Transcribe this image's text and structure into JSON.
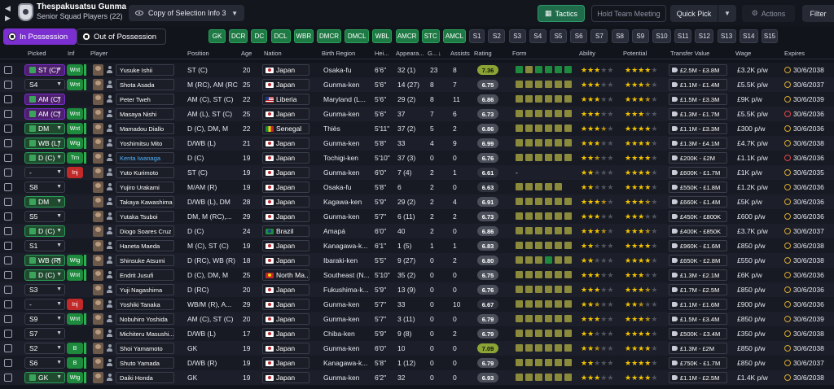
{
  "header": {
    "club_name": "Thespakusatsu Gunma",
    "squad_label": "Senior Squad Players (22)",
    "view_label": "Copy of Selection Info 3",
    "tactics_label": "Tactics",
    "hold_meeting_label": "Hold Team Meeting",
    "quick_pick_label": "Quick Pick",
    "actions_label": "Actions",
    "filter_label": "Filter"
  },
  "tabs": {
    "in_possession": "In Possession",
    "out_possession": "Out of Possession"
  },
  "position_buttons": [
    {
      "label": "GK",
      "style": "green"
    },
    {
      "label": "DCR",
      "style": "green"
    },
    {
      "label": "DC",
      "style": "green"
    },
    {
      "label": "DCL",
      "style": "green"
    },
    {
      "label": "WBR",
      "style": "green"
    },
    {
      "label": "DMCR",
      "style": "green"
    },
    {
      "label": "DMCL",
      "style": "green"
    },
    {
      "label": "WBL",
      "style": "green"
    },
    {
      "label": "AMCR",
      "style": "green"
    },
    {
      "label": "STC",
      "style": "green"
    },
    {
      "label": "AMCL",
      "style": "green"
    },
    {
      "label": "S1",
      "style": "gray"
    },
    {
      "label": "S2",
      "style": "gray"
    },
    {
      "label": "S3",
      "style": "gray"
    },
    {
      "label": "S4",
      "style": "gray"
    },
    {
      "label": "S5",
      "style": "gray"
    },
    {
      "label": "S6",
      "style": "gray"
    },
    {
      "label": "S7",
      "style": "gray"
    },
    {
      "label": "S8",
      "style": "gray"
    },
    {
      "label": "S9",
      "style": "gray"
    },
    {
      "label": "S10",
      "style": "gray"
    },
    {
      "label": "S11",
      "style": "gray"
    },
    {
      "label": "S12",
      "style": "gray"
    },
    {
      "label": "S13",
      "style": "gray"
    },
    {
      "label": "S14",
      "style": "gray"
    },
    {
      "label": "S15",
      "style": "gray"
    }
  ],
  "columns": {
    "picked": "Picked",
    "inf": "Inf",
    "player": "Player",
    "position": "Position",
    "age": "Age",
    "nation": "Nation",
    "birth_region": "Birth Region",
    "height": "Hei...",
    "appearances": "Appeara...",
    "goals": "G...",
    "assists": "Assists",
    "rating": "Rating",
    "form": "Form",
    "ability": "Ability",
    "potential": "Potential",
    "transfer_value": "Transfer Value",
    "wage": "Wage",
    "expires": "Expires"
  },
  "players": [
    {
      "picked": "ST (C)",
      "picked_style": "pk-purple",
      "inf": "Wnt",
      "inf_style": "green",
      "name": "Yusuke Ishii",
      "position": "ST (C)",
      "age": "20",
      "nation": "Japan",
      "flag": "jp",
      "birth_region": "Osaka-fu",
      "height": "6'6\"",
      "apps": "32 (1)",
      "goals": "23",
      "assists": "8",
      "rating": "7.36",
      "rating_style": "hi",
      "form": [
        "g",
        "y",
        "g",
        "g",
        "g",
        "g"
      ],
      "ability": 3,
      "potential": 4,
      "value": "£2.5M - £3.8M",
      "wage": "£3.2K p/w",
      "expires": "30/6/2038",
      "exp_alert": false
    },
    {
      "picked": "S4",
      "picked_style": "plain",
      "inf": "Wnt",
      "inf_style": "green",
      "name": "Shota Asada",
      "position": "M (RC), AM (RC)",
      "age": "25",
      "nation": "Japan",
      "flag": "jp",
      "birth_region": "Gunma-ken",
      "height": "5'6\"",
      "apps": "14 (27)",
      "goals": "8",
      "assists": "7",
      "rating": "6.75",
      "rating_style": "mid",
      "form": [
        "y",
        "y",
        "y",
        "y",
        "y",
        "y"
      ],
      "ability": 3,
      "potential": 3.5,
      "value": "£1.1M - £1.4M",
      "wage": "£5.5K p/w",
      "expires": "30/6/2037",
      "exp_alert": false
    },
    {
      "picked": "AM (C)",
      "picked_style": "pk-purple",
      "inf": "",
      "inf_style": "none",
      "name": "Peter Tweh",
      "position": "AM (C), ST (C)",
      "age": "22",
      "nation": "Liberia",
      "flag": "lr",
      "birth_region": "Maryland (L...",
      "height": "5'6\"",
      "apps": "29 (2)",
      "goals": "8",
      "assists": "11",
      "rating": "6.86",
      "rating_style": "mid",
      "form": [
        "y",
        "y",
        "y",
        "y",
        "y",
        "y"
      ],
      "ability": 3,
      "potential": 3.5,
      "value": "£1.5M - £3.3M",
      "wage": "£9K p/w",
      "expires": "30/6/2039",
      "exp_alert": false
    },
    {
      "picked": "AM (C)",
      "picked_style": "pk-purple",
      "inf": "Wnt",
      "inf_style": "green",
      "name": "Masaya Nishi",
      "position": "AM (L), ST (C)",
      "age": "25",
      "nation": "Japan",
      "flag": "jp",
      "birth_region": "Gunma-ken",
      "height": "5'6\"",
      "apps": "37",
      "goals": "7",
      "assists": "6",
      "rating": "6.73",
      "rating_style": "mid",
      "form": [
        "y",
        "y",
        "y",
        "y",
        "y",
        "y"
      ],
      "ability": 3,
      "potential": 3,
      "value": "£1.3M - £1.7M",
      "wage": "£5.5K p/w",
      "expires": "30/6/2036",
      "exp_alert": true
    },
    {
      "picked": "DM",
      "picked_style": "pk-green",
      "inf": "Wnt",
      "inf_style": "green",
      "name": "Mamadou Diallo",
      "position": "D (C), DM, M",
      "age": "22",
      "nation": "Senegal",
      "flag": "sn",
      "birth_region": "Thiès",
      "height": "5'11\"",
      "apps": "37 (2)",
      "goals": "5",
      "assists": "2",
      "rating": "6.86",
      "rating_style": "mid",
      "form": [
        "y",
        "y",
        "y",
        "y",
        "y",
        "y"
      ],
      "ability": 3.5,
      "potential": 4,
      "value": "£1.1M - £3.3M",
      "wage": "£300 p/w",
      "expires": "30/6/2036",
      "exp_alert": false
    },
    {
      "picked": "WB (L)",
      "picked_style": "pk-green",
      "inf": "Wtg",
      "inf_style": "green",
      "name": "Yoshimitsu Mito",
      "position": "D/WB (L)",
      "age": "21",
      "nation": "Japan",
      "flag": "jp",
      "birth_region": "Gunma-ken",
      "height": "5'8\"",
      "apps": "33",
      "goals": "4",
      "assists": "9",
      "rating": "6.99",
      "rating_style": "mid",
      "form": [
        "y",
        "y",
        "y",
        "y",
        "y",
        "y"
      ],
      "ability": 3,
      "potential": 4,
      "value": "£1.3M - £4.1M",
      "wage": "£4.7K p/w",
      "expires": "30/6/2038",
      "exp_alert": false
    },
    {
      "picked": "D (C)",
      "picked_style": "pk-green",
      "inf": "Trn",
      "inf_style": "green",
      "name": "Kenta Iwanaga",
      "name_link": true,
      "position": "D (C)",
      "age": "19",
      "nation": "Japan",
      "flag": "jp",
      "birth_region": "Tochigi-ken",
      "height": "5'10\"",
      "apps": "37 (3)",
      "goals": "0",
      "assists": "0",
      "rating": "6.76",
      "rating_style": "mid",
      "form": [
        "y",
        "y",
        "y",
        "y",
        "y",
        "y"
      ],
      "ability": 2.5,
      "potential": 4,
      "value": "£200K - £2M",
      "wage": "£1.1K p/w",
      "expires": "30/6/2036",
      "exp_alert": true
    },
    {
      "picked": "-",
      "picked_style": "plain",
      "inf": "Inj",
      "inf_style": "red",
      "name": "Yuto Kurimoto",
      "position": "ST (C)",
      "age": "19",
      "nation": "Japan",
      "flag": "jp",
      "birth_region": "Gunma-ken",
      "height": "6'0\"",
      "apps": "7 (4)",
      "goals": "2",
      "assists": "1",
      "rating": "6.61",
      "rating_style": "lo",
      "form": [],
      "ability": 2,
      "potential": 4,
      "value": "£600K - £1.7M",
      "wage": "£1K p/w",
      "expires": "30/6/2035",
      "exp_alert": false
    },
    {
      "picked": "S8",
      "picked_style": "plain",
      "inf": "",
      "inf_style": "none",
      "name": "Yujiro Urakami",
      "position": "M/AM (R)",
      "age": "19",
      "nation": "Japan",
      "flag": "jp",
      "birth_region": "Osaka-fu",
      "height": "5'8\"",
      "apps": "6",
      "goals": "2",
      "assists": "0",
      "rating": "6.63",
      "rating_style": "lo",
      "form": [
        "y",
        "y",
        "y",
        "y",
        "y"
      ],
      "ability": 2,
      "potential": 4,
      "value": "£550K - £1.8M",
      "wage": "£1.2K p/w",
      "expires": "30/6/2036",
      "exp_alert": false
    },
    {
      "picked": "DM",
      "picked_style": "pk-green",
      "inf": "",
      "inf_style": "none",
      "name": "Takaya Kawashima",
      "position": "D/WB (L), DM",
      "age": "28",
      "nation": "Japan",
      "flag": "jp",
      "birth_region": "Kagawa-ken",
      "height": "5'9\"",
      "apps": "29 (2)",
      "goals": "2",
      "assists": "4",
      "rating": "6.91",
      "rating_style": "mid",
      "form": [
        "y",
        "y",
        "y",
        "y",
        "y",
        "y"
      ],
      "ability": 3.5,
      "potential": 3.5,
      "value": "£660K - £1.4M",
      "wage": "£5K p/w",
      "expires": "30/6/2036",
      "exp_alert": false
    },
    {
      "picked": "S5",
      "picked_style": "plain",
      "inf": "",
      "inf_style": "none",
      "name": "Yutaka Tsuboi",
      "position": "DM, M (RC),...",
      "age": "29",
      "nation": "Japan",
      "flag": "jp",
      "birth_region": "Gunma-ken",
      "height": "5'7\"",
      "apps": "6 (11)",
      "goals": "2",
      "assists": "2",
      "rating": "6.73",
      "rating_style": "mid",
      "form": [
        "y",
        "y",
        "y",
        "y",
        "y",
        "y"
      ],
      "ability": 3,
      "potential": 3,
      "value": "£450K - £800K",
      "wage": "£600 p/w",
      "expires": "30/6/2036",
      "exp_alert": false
    },
    {
      "picked": "D (C)",
      "picked_style": "pk-green",
      "inf": "",
      "inf_style": "none",
      "name": "Diogo Soares Cruz",
      "position": "D (C)",
      "age": "24",
      "nation": "Brazil",
      "flag": "br",
      "birth_region": "Amapá",
      "height": "6'0\"",
      "apps": "40",
      "goals": "2",
      "assists": "0",
      "rating": "6.86",
      "rating_style": "mid",
      "form": [
        "y",
        "y",
        "y",
        "y",
        "y",
        "y"
      ],
      "ability": 3.5,
      "potential": 3.5,
      "value": "£400K - £850K",
      "wage": "£3.7K p/w",
      "expires": "30/6/2037",
      "exp_alert": false
    },
    {
      "picked": "S1",
      "picked_style": "plain",
      "inf": "",
      "inf_style": "none",
      "name": "Haneta Maeda",
      "position": "M (C), ST (C)",
      "age": "19",
      "nation": "Japan",
      "flag": "jp",
      "birth_region": "Kanagawa-k...",
      "height": "6'1\"",
      "apps": "1 (5)",
      "goals": "1",
      "assists": "1",
      "rating": "6.83",
      "rating_style": "mid",
      "form": [
        "y",
        "y",
        "y",
        "y",
        "y",
        "y"
      ],
      "ability": 2,
      "potential": 4,
      "value": "£960K - £1.6M",
      "wage": "£850 p/w",
      "expires": "30/6/2038",
      "exp_alert": false
    },
    {
      "picked": "WB (R)",
      "picked_style": "pk-green",
      "inf": "Wtg",
      "inf_style": "green",
      "name": "Shinsuke Atsumi",
      "position": "D (RC), WB (R)",
      "age": "18",
      "nation": "Japan",
      "flag": "jp",
      "birth_region": "Ibaraki-ken",
      "height": "5'5\"",
      "apps": "9 (27)",
      "goals": "0",
      "assists": "2",
      "rating": "6.80",
      "rating_style": "mid",
      "form": [
        "y",
        "y",
        "y",
        "g",
        "y",
        "y"
      ],
      "ability": 2,
      "potential": 4,
      "value": "£650K - £2.8M",
      "wage": "£550 p/w",
      "expires": "30/6/2038",
      "exp_alert": false
    },
    {
      "picked": "D (C)",
      "picked_style": "pk-green",
      "inf": "Wnt",
      "inf_style": "green",
      "name": "Endrit Jusufi",
      "position": "D (C), DM, M",
      "age": "25",
      "nation": "North Ma...",
      "flag": "mk",
      "birth_region": "Southeast (N...",
      "height": "5'10\"",
      "apps": "35 (2)",
      "goals": "0",
      "assists": "0",
      "rating": "6.75",
      "rating_style": "mid",
      "form": [
        "y",
        "y",
        "y",
        "y",
        "y",
        "y"
      ],
      "ability": 3,
      "potential": 3,
      "value": "£1.3M - £2.1M",
      "wage": "£6K p/w",
      "expires": "30/6/2036",
      "exp_alert": false
    },
    {
      "picked": "S3",
      "picked_style": "plain",
      "inf": "",
      "inf_style": "none",
      "name": "Yuji Nagashima",
      "position": "D (RC)",
      "age": "20",
      "nation": "Japan",
      "flag": "jp",
      "birth_region": "Fukushima-k...",
      "height": "5'9\"",
      "apps": "13 (9)",
      "goals": "0",
      "assists": "0",
      "rating": "6.76",
      "rating_style": "mid",
      "form": [
        "y",
        "y",
        "y",
        "y",
        "y",
        "y"
      ],
      "ability": 3,
      "potential": 3.5,
      "value": "£1.7M - £2.5M",
      "wage": "£850 p/w",
      "expires": "30/6/2036",
      "exp_alert": false
    },
    {
      "picked": "-",
      "picked_style": "plain",
      "inf": "Inj",
      "inf_style": "red",
      "name": "Yoshiki Tanaka",
      "position": "WB/M (R), A...",
      "age": "29",
      "nation": "Japan",
      "flag": "jp",
      "birth_region": "Gunma-ken",
      "height": "5'7\"",
      "apps": "33",
      "goals": "0",
      "assists": "10",
      "rating": "6.67",
      "rating_style": "lo",
      "form": [
        "y",
        "y",
        "y",
        "y",
        "y",
        "y"
      ],
      "ability": 2.5,
      "potential": 2.5,
      "value": "£1.1M - £1.6M",
      "wage": "£900 p/w",
      "expires": "30/6/2036",
      "exp_alert": false
    },
    {
      "picked": "S9",
      "picked_style": "plain",
      "inf": "Wnt",
      "inf_style": "green",
      "name": "Nobuhiro Yoshida",
      "position": "AM (C), ST (C)",
      "age": "20",
      "nation": "Japan",
      "flag": "jp",
      "birth_region": "Gunma-ken",
      "height": "5'7\"",
      "apps": "3 (11)",
      "goals": "0",
      "assists": "0",
      "rating": "6.79",
      "rating_style": "mid",
      "form": [
        "y",
        "y",
        "y",
        "y",
        "y",
        "y"
      ],
      "ability": 3,
      "potential": 3.5,
      "value": "£1.5M - £3.4M",
      "wage": "£850 p/w",
      "expires": "30/6/2039",
      "exp_alert": false
    },
    {
      "picked": "S7",
      "picked_style": "plain",
      "inf": "",
      "inf_style": "none",
      "name": "Michiteru Masushi...",
      "position": "D/WB (L)",
      "age": "17",
      "nation": "Japan",
      "flag": "jp",
      "birth_region": "Chiba-ken",
      "height": "5'9\"",
      "apps": "9 (8)",
      "goals": "0",
      "assists": "2",
      "rating": "6.79",
      "rating_style": "mid",
      "form": [
        "y",
        "y",
        "y",
        "y",
        "y",
        "y"
      ],
      "ability": 2,
      "potential": 4,
      "value": "£500K - £3.4M",
      "wage": "£350 p/w",
      "expires": "30/6/2038",
      "exp_alert": false
    },
    {
      "picked": "S2",
      "picked_style": "plain",
      "inf": "B",
      "inf_style": "green",
      "name": "Shoi Yamamoto",
      "position": "GK",
      "age": "19",
      "nation": "Japan",
      "flag": "jp",
      "birth_region": "Gunma-ken",
      "height": "6'0\"",
      "apps": "10",
      "goals": "0",
      "assists": "0",
      "rating": "7.09",
      "rating_style": "hi",
      "form": [
        "y",
        "y",
        "y",
        "y",
        "y",
        "y"
      ],
      "ability": 2.5,
      "potential": 4,
      "value": "£1.3M - £2M",
      "wage": "£850 p/w",
      "expires": "30/6/2038",
      "exp_alert": false
    },
    {
      "picked": "S6",
      "picked_style": "plain",
      "inf": "B",
      "inf_style": "green",
      "name": "Shuto Yamada",
      "position": "D/WB (R)",
      "age": "19",
      "nation": "Japan",
      "flag": "jp",
      "birth_region": "Kanagawa-k...",
      "height": "5'8\"",
      "apps": "1 (12)",
      "goals": "0",
      "assists": "0",
      "rating": "6.79",
      "rating_style": "mid",
      "form": [
        "y",
        "y",
        "y",
        "y",
        "y",
        "y"
      ],
      "ability": 2,
      "potential": 4,
      "value": "£750K - £1.7M",
      "wage": "£850 p/w",
      "expires": "30/6/2037",
      "exp_alert": false
    },
    {
      "picked": "GK",
      "picked_style": "pk-green",
      "inf": "Wtg",
      "inf_style": "green",
      "name": "Daiki Honda",
      "position": "GK",
      "age": "19",
      "nation": "Japan",
      "flag": "jp",
      "birth_region": "Gunma-ken",
      "height": "6'2\"",
      "apps": "32",
      "goals": "0",
      "assists": "0",
      "rating": "6.93",
      "rating_style": "mid",
      "form": [
        "y",
        "y",
        "y",
        "y",
        "y",
        "y"
      ],
      "ability": 3,
      "potential": 4,
      "value": "£1.1M - £2.5M",
      "wage": "£1.4K p/w",
      "expires": "30/6/2038",
      "exp_alert": false
    }
  ]
}
